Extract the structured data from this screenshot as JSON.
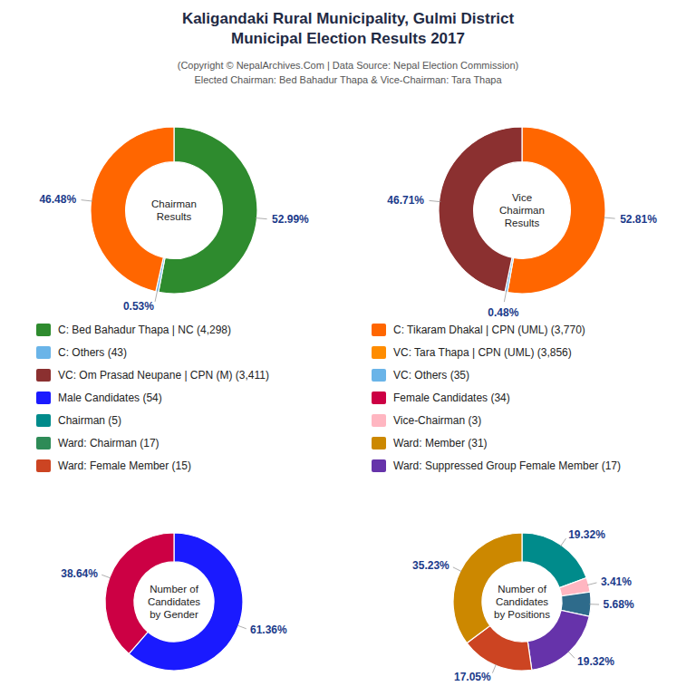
{
  "title": "Kaligandaki Rural Municipality, Gulmi District\nMunicipal Election Results 2017",
  "subtitle": "(Copyright © NepalArchives.Com | Data Source: Nepal Election Commission)\nElected Chairman: Bed Bahadur Thapa & Vice-Chairman: Tara Thapa",
  "chart_data": [
    {
      "type": "pie",
      "title": "Chairman\nResults",
      "values": [
        52.99,
        0.53,
        46.48
      ],
      "value_labels": [
        "52.99%",
        "0.53%",
        "46.48%"
      ],
      "colors": [
        "#2e8b2e",
        "#6ab4e8",
        "#ff6600"
      ],
      "data_labels": true
    },
    {
      "type": "pie",
      "title": "Vice\nChairman\nResults",
      "values": [
        52.81,
        0.48,
        46.71
      ],
      "value_labels": [
        "52.81%",
        "0.48%",
        "46.71%"
      ],
      "colors": [
        "#ff6600",
        "#6ab4e8",
        "#8b3030"
      ],
      "data_labels": true
    },
    {
      "type": "pie",
      "title": "Number of\nCandidates\nby Gender",
      "values": [
        61.36,
        38.64
      ],
      "value_labels": [
        "61.36%",
        "38.64%"
      ],
      "colors": [
        "#1a1aff",
        "#cc0044"
      ],
      "data_labels": true
    },
    {
      "type": "pie",
      "title": "Number of\nCandidates\nby Positions",
      "values": [
        19.32,
        3.41,
        5.68,
        19.32,
        17.05,
        35.23
      ],
      "value_labels": [
        "19.32%",
        "3.41%",
        "5.68%",
        "19.32%",
        "17.05%",
        "35.23%"
      ],
      "colors": [
        "#008b8b",
        "#ffb6c1",
        "#2e6b8b",
        "#6633aa",
        "#cc4422",
        "#cc8800"
      ],
      "data_labels": true
    }
  ],
  "legend_items": [
    {
      "name": "C: Bed Bahadur Thapa | NC (4,298)",
      "color": "#2e8b2e"
    },
    {
      "name": "C: Others (43)",
      "color": "#6ab4e8"
    },
    {
      "name": "VC: Om Prasad Neupane | CPN (M) (3,411)",
      "color": "#8b3030"
    },
    {
      "name": "Male Candidates (54)",
      "color": "#1a1aff"
    },
    {
      "name": "Chairman (5)",
      "color": "#008b8b"
    },
    {
      "name": "Ward: Chairman (17)",
      "color": "#2e8b57"
    },
    {
      "name": "Ward: Female Member (15)",
      "color": "#cc4422"
    },
    {
      "name": "C: Tikaram Dhakal | CPN (UML) (3,770)",
      "color": "#ff6600"
    },
    {
      "name": "VC: Tara Thapa | CPN (UML) (3,856)",
      "color": "#ff8c00"
    },
    {
      "name": "VC: Others (35)",
      "color": "#6ab4e8"
    },
    {
      "name": "Female Candidates (34)",
      "color": "#cc0044"
    },
    {
      "name": "Vice-Chairman (3)",
      "color": "#ffb6c1"
    },
    {
      "name": "Ward: Member (31)",
      "color": "#cc8800"
    },
    {
      "name": "Ward: Suppressed Group Female Member (17)",
      "color": "#6633aa"
    }
  ]
}
